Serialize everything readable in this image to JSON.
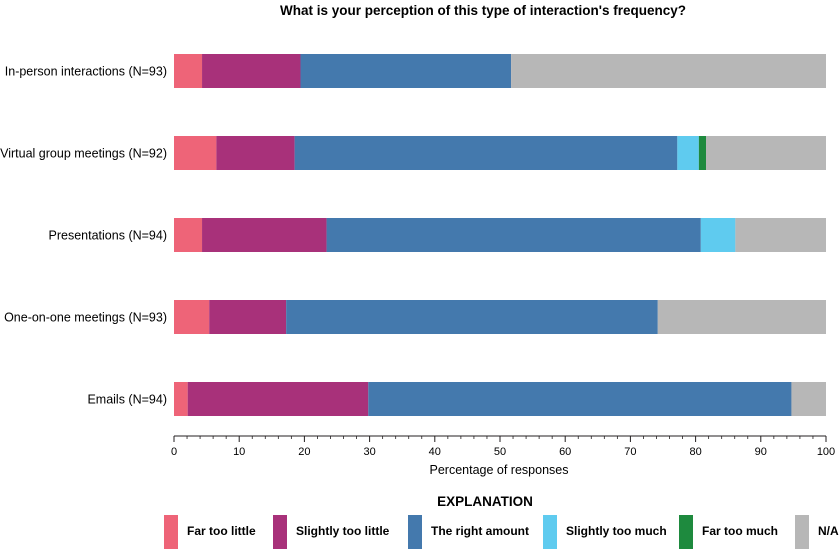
{
  "chart_data": {
    "type": "bar",
    "orientation": "horizontal",
    "stacked": true,
    "title": "What is your perception of this type of interaction's frequency?",
    "xlabel": "Percentage of responses",
    "ylabel": "",
    "xlim": [
      0,
      100
    ],
    "xticks": [
      0,
      10,
      20,
      30,
      40,
      50,
      60,
      70,
      80,
      90,
      100
    ],
    "grid": false,
    "legend_title": "EXPLANATION",
    "legend_position": "bottom",
    "categories": [
      "In-person interactions (N=93)",
      "Virtual group meetings (N=92)",
      "Presentations (N=94)",
      "One-on-one meetings (N=93)",
      "Emails (N=94)"
    ],
    "series": [
      {
        "name": "Far too little",
        "color": "#ee6478",
        "values": [
          4.3,
          6.5,
          4.3,
          5.4,
          2.1
        ]
      },
      {
        "name": "Slightly too little",
        "color": "#a8317a",
        "values": [
          15.1,
          12.0,
          19.1,
          11.8,
          27.7
        ]
      },
      {
        "name": "The right amount",
        "color": "#4479ad",
        "values": [
          32.3,
          58.7,
          57.4,
          57.0,
          64.9
        ]
      },
      {
        "name": "Slightly too much",
        "color": "#5fcbef",
        "values": [
          0,
          3.3,
          5.3,
          0,
          0
        ]
      },
      {
        "name": "Far too much",
        "color": "#1e8a3e",
        "values": [
          0,
          1.1,
          0,
          0,
          0
        ]
      },
      {
        "name": "N/A",
        "color": "#b7b7b7",
        "values": [
          48.3,
          18.4,
          13.9,
          25.8,
          5.3
        ]
      }
    ]
  }
}
